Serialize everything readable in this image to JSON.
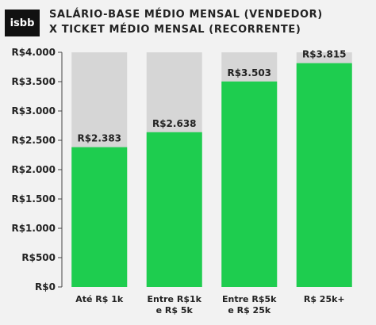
{
  "logo": "isbb",
  "title_line1": "SALÁRIO-BASE MÉDIO MENSAL (VENDEDOR)",
  "title_line2": "X TICKET MÉDIO MENSAL (RECORRENTE)",
  "chart_data": {
    "type": "bar",
    "title": "SALÁRIO-BASE MÉDIO MENSAL (VENDEDOR) X TICKET MÉDIO MENSAL (RECORRENTE)",
    "categories": [
      [
        "Até R$ 1k"
      ],
      [
        "Entre R$1k",
        "e R$ 5k"
      ],
      [
        "Entre R$5k",
        "e R$ 25k"
      ],
      [
        "R$ 25k+"
      ]
    ],
    "values": [
      2383,
      2638,
      3503,
      3815
    ],
    "data_labels": [
      "R$2.383",
      "R$2.638",
      "R$3.503",
      "R$3.815"
    ],
    "ylim": [
      0,
      4000
    ],
    "yticks": [
      0,
      500,
      1000,
      1500,
      2000,
      2500,
      3000,
      3500,
      4000
    ],
    "ytick_labels": [
      "R$0",
      "R$500",
      "R$1.000",
      "R$1.500",
      "R$2.000",
      "R$2.500",
      "R$3.000",
      "R$3.500",
      "R$4.000"
    ],
    "background_bar_value": 4000,
    "colors": {
      "bar": "#1ecd4f",
      "background_bar": "#d6d6d6",
      "text": "#222222",
      "axis": "#444444"
    }
  }
}
